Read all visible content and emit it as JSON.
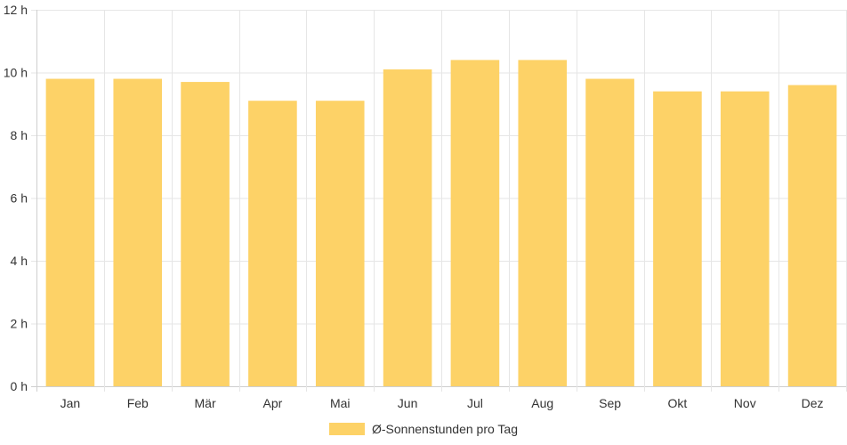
{
  "colors": {
    "bar": "#fdd267",
    "grid": "#e6e6e6",
    "axis": "#cfcfcf",
    "text": "#333333"
  },
  "chart_data": {
    "type": "bar",
    "categories": [
      "Jan",
      "Feb",
      "Mär",
      "Apr",
      "Mai",
      "Jun",
      "Jul",
      "Aug",
      "Sep",
      "Okt",
      "Nov",
      "Dez"
    ],
    "series": [
      {
        "name": "Ø-Sonnenstunden pro Tag",
        "values": [
          9.8,
          9.8,
          9.7,
          9.1,
          9.1,
          10.1,
          10.4,
          10.4,
          9.8,
          9.4,
          9.4,
          9.6
        ]
      }
    ],
    "ylim": [
      0,
      12
    ],
    "yticks": [
      0,
      2,
      4,
      6,
      8,
      10,
      12
    ],
    "ytick_labels": [
      "0 h",
      "2 h",
      "4 h",
      "6 h",
      "8 h",
      "10 h",
      "12 h"
    ],
    "grid": true,
    "legend_position": "bottom"
  }
}
